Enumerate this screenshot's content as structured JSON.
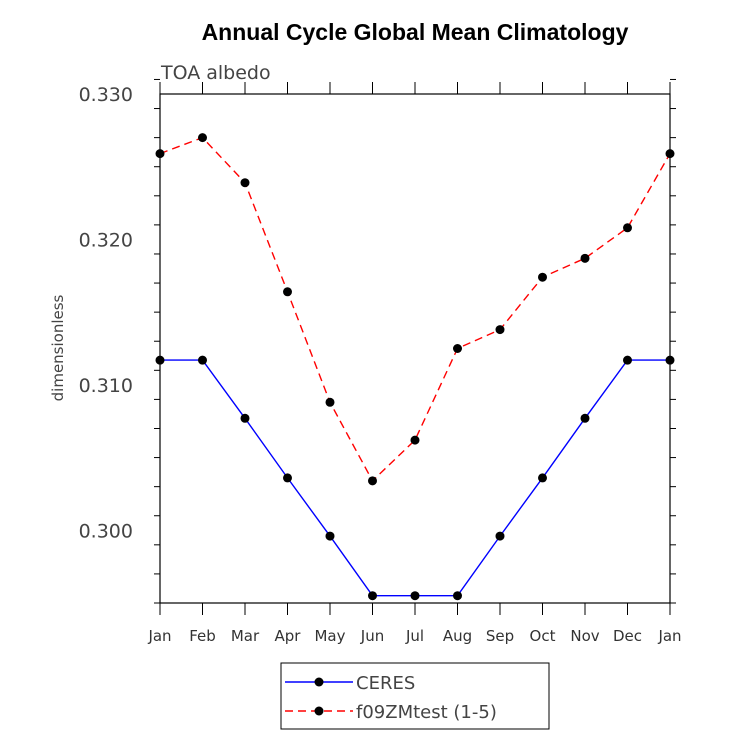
{
  "chart_data": {
    "type": "line",
    "title": "Annual Cycle Global Mean Climatology",
    "subtitle": "TOA albedo",
    "xlabel": "",
    "ylabel": "dimensionless",
    "categories": [
      "Jan",
      "Feb",
      "Mar",
      "Apr",
      "May",
      "Jun",
      "Jul",
      "Aug",
      "Sep",
      "Oct",
      "Nov",
      "Dec",
      "Jan"
    ],
    "ylim": [
      0.295,
      0.33
    ],
    "yticks": [
      0.3,
      0.31,
      0.32,
      0.33
    ],
    "ytick_labels": [
      "0.300",
      "0.310",
      "0.320",
      "0.330"
    ],
    "grid": false,
    "legend_position": "bottom-center",
    "series": [
      {
        "name": "CERES",
        "color": "#0000ff",
        "line_style": "solid",
        "marker": "filled-circle",
        "values": [
          0.3117,
          0.3117,
          0.3077,
          0.3036,
          0.2996,
          0.2955,
          0.2955,
          0.2955,
          0.2996,
          0.3036,
          0.3077,
          0.3117,
          0.3117
        ]
      },
      {
        "name": "f09ZMtest (1-5)",
        "color": "#ff0000",
        "line_style": "dashed",
        "marker": "filled-circle",
        "values": [
          0.3259,
          0.327,
          0.3239,
          0.3164,
          0.3088,
          0.3034,
          0.3062,
          0.3125,
          0.3138,
          0.3174,
          0.3187,
          0.3208,
          0.3259
        ]
      }
    ]
  }
}
